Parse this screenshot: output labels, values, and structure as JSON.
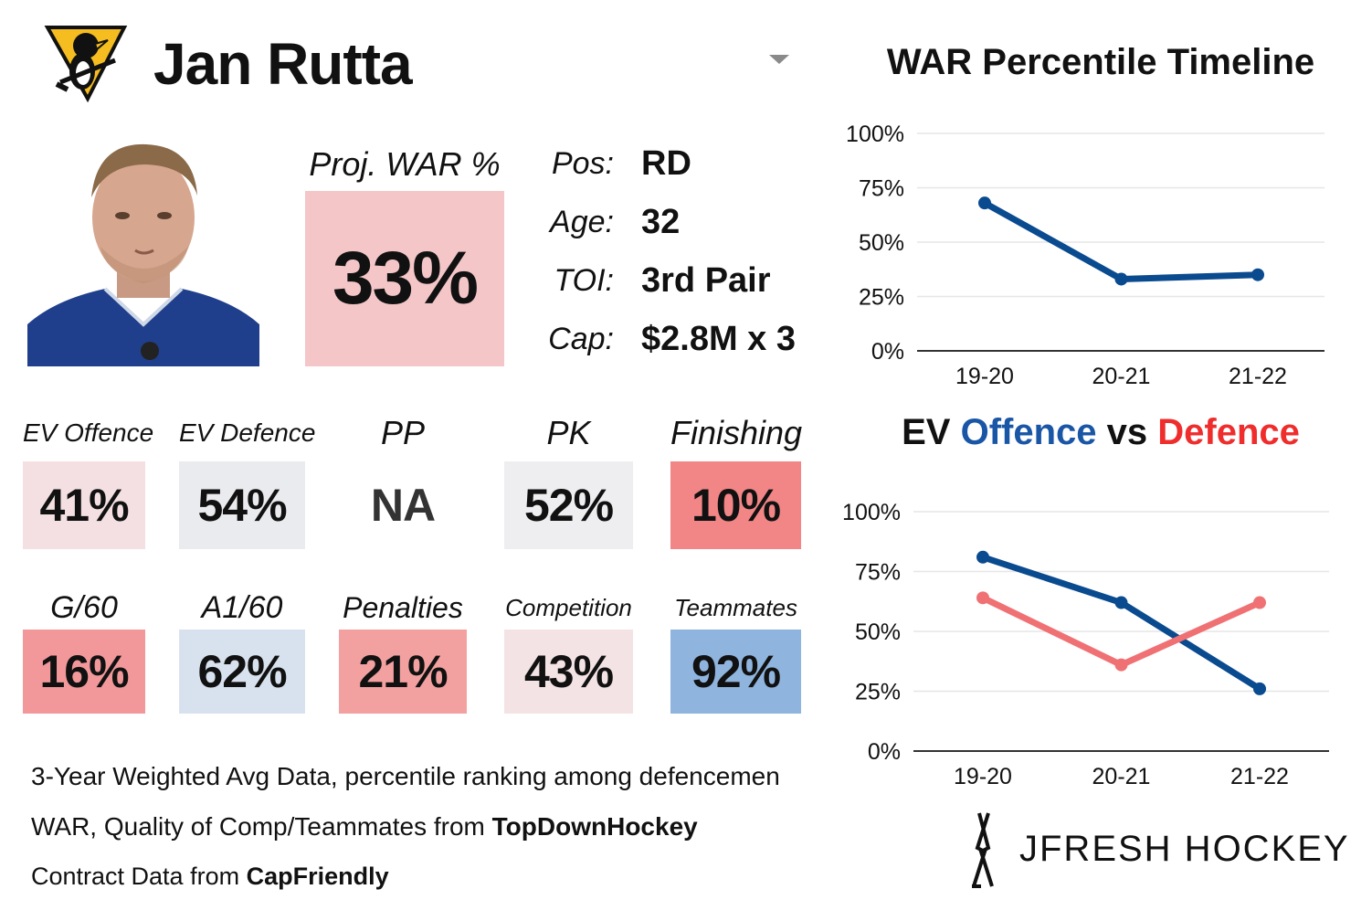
{
  "header": {
    "player_name": "Jan Rutta",
    "team_logo_icon": "penguins-logo-icon"
  },
  "projection": {
    "label": "Proj. WAR %",
    "value": "33%",
    "color": "#f4c6c8"
  },
  "bio": [
    {
      "label": "Pos:",
      "value": "RD"
    },
    {
      "label": "Age:",
      "value": "32"
    },
    {
      "label": "TOI:",
      "value": "3rd Pair"
    },
    {
      "label": "Cap:",
      "value": "$2.8M x 3"
    }
  ],
  "stats_row1": [
    {
      "label": "EV Offence",
      "value": "41%",
      "color": "#f4e0e2"
    },
    {
      "label": "EV Defence",
      "value": "54%",
      "color": "#eaebef"
    },
    {
      "label": "PP",
      "value": "NA",
      "color": "#ffffff"
    },
    {
      "label": "PK",
      "value": "52%",
      "color": "#eeeef1"
    },
    {
      "label": "Finishing",
      "value": "10%",
      "color": "#f28586"
    }
  ],
  "stats_row2": [
    {
      "label": "G/60",
      "value": "16%",
      "color": "#f2989a"
    },
    {
      "label": "A1/60",
      "value": "62%",
      "color": "#d8e2ee"
    },
    {
      "label": "Penalties",
      "value": "21%",
      "color": "#f3a0a1"
    },
    {
      "label": "Competition",
      "value": "43%",
      "color": "#f4e3e4"
    },
    {
      "label": "Teammates",
      "value": "92%",
      "color": "#8fb5df"
    }
  ],
  "notes": {
    "line1": "3-Year Weighted Avg Data, percentile ranking among defencemen",
    "line2_prefix": "WAR, Quality of Comp/Teammates from ",
    "line2_source": "TopDownHockey",
    "line3_prefix": "Contract Data from ",
    "line3_source": "CapFriendly"
  },
  "brand": {
    "text": "JFRESH HOCKEY",
    "icon": "hockey-sticks-icon"
  },
  "colors": {
    "offence": "#0a4a8f",
    "defence": "#f07174",
    "title_offence": "#1a56a6",
    "title_defence": "#ef2d2d"
  },
  "chart_data": [
    {
      "type": "line",
      "title": "WAR Percentile Timeline",
      "categories": [
        "19-20",
        "20-21",
        "21-22"
      ],
      "yticks": [
        "100%",
        "75%",
        "50%",
        "25%",
        "0%"
      ],
      "ylim": [
        0,
        100
      ],
      "grid": true,
      "series": [
        {
          "values": [
            68,
            33,
            35
          ],
          "color": "#0a4a8f"
        }
      ]
    },
    {
      "type": "line",
      "title_parts": {
        "ev": "EV",
        "offence": "Offence",
        "vs": "vs",
        "defence": "Defence"
      },
      "categories": [
        "19-20",
        "20-21",
        "21-22"
      ],
      "yticks": [
        "100%",
        "75%",
        "50%",
        "25%",
        "0%"
      ],
      "ylim": [
        0,
        100
      ],
      "grid": true,
      "series": [
        {
          "name": "Offence",
          "values": [
            81,
            62,
            26
          ],
          "color": "#0a4a8f"
        },
        {
          "name": "Defence",
          "values": [
            64,
            36,
            62
          ],
          "color": "#f07174"
        }
      ]
    }
  ]
}
